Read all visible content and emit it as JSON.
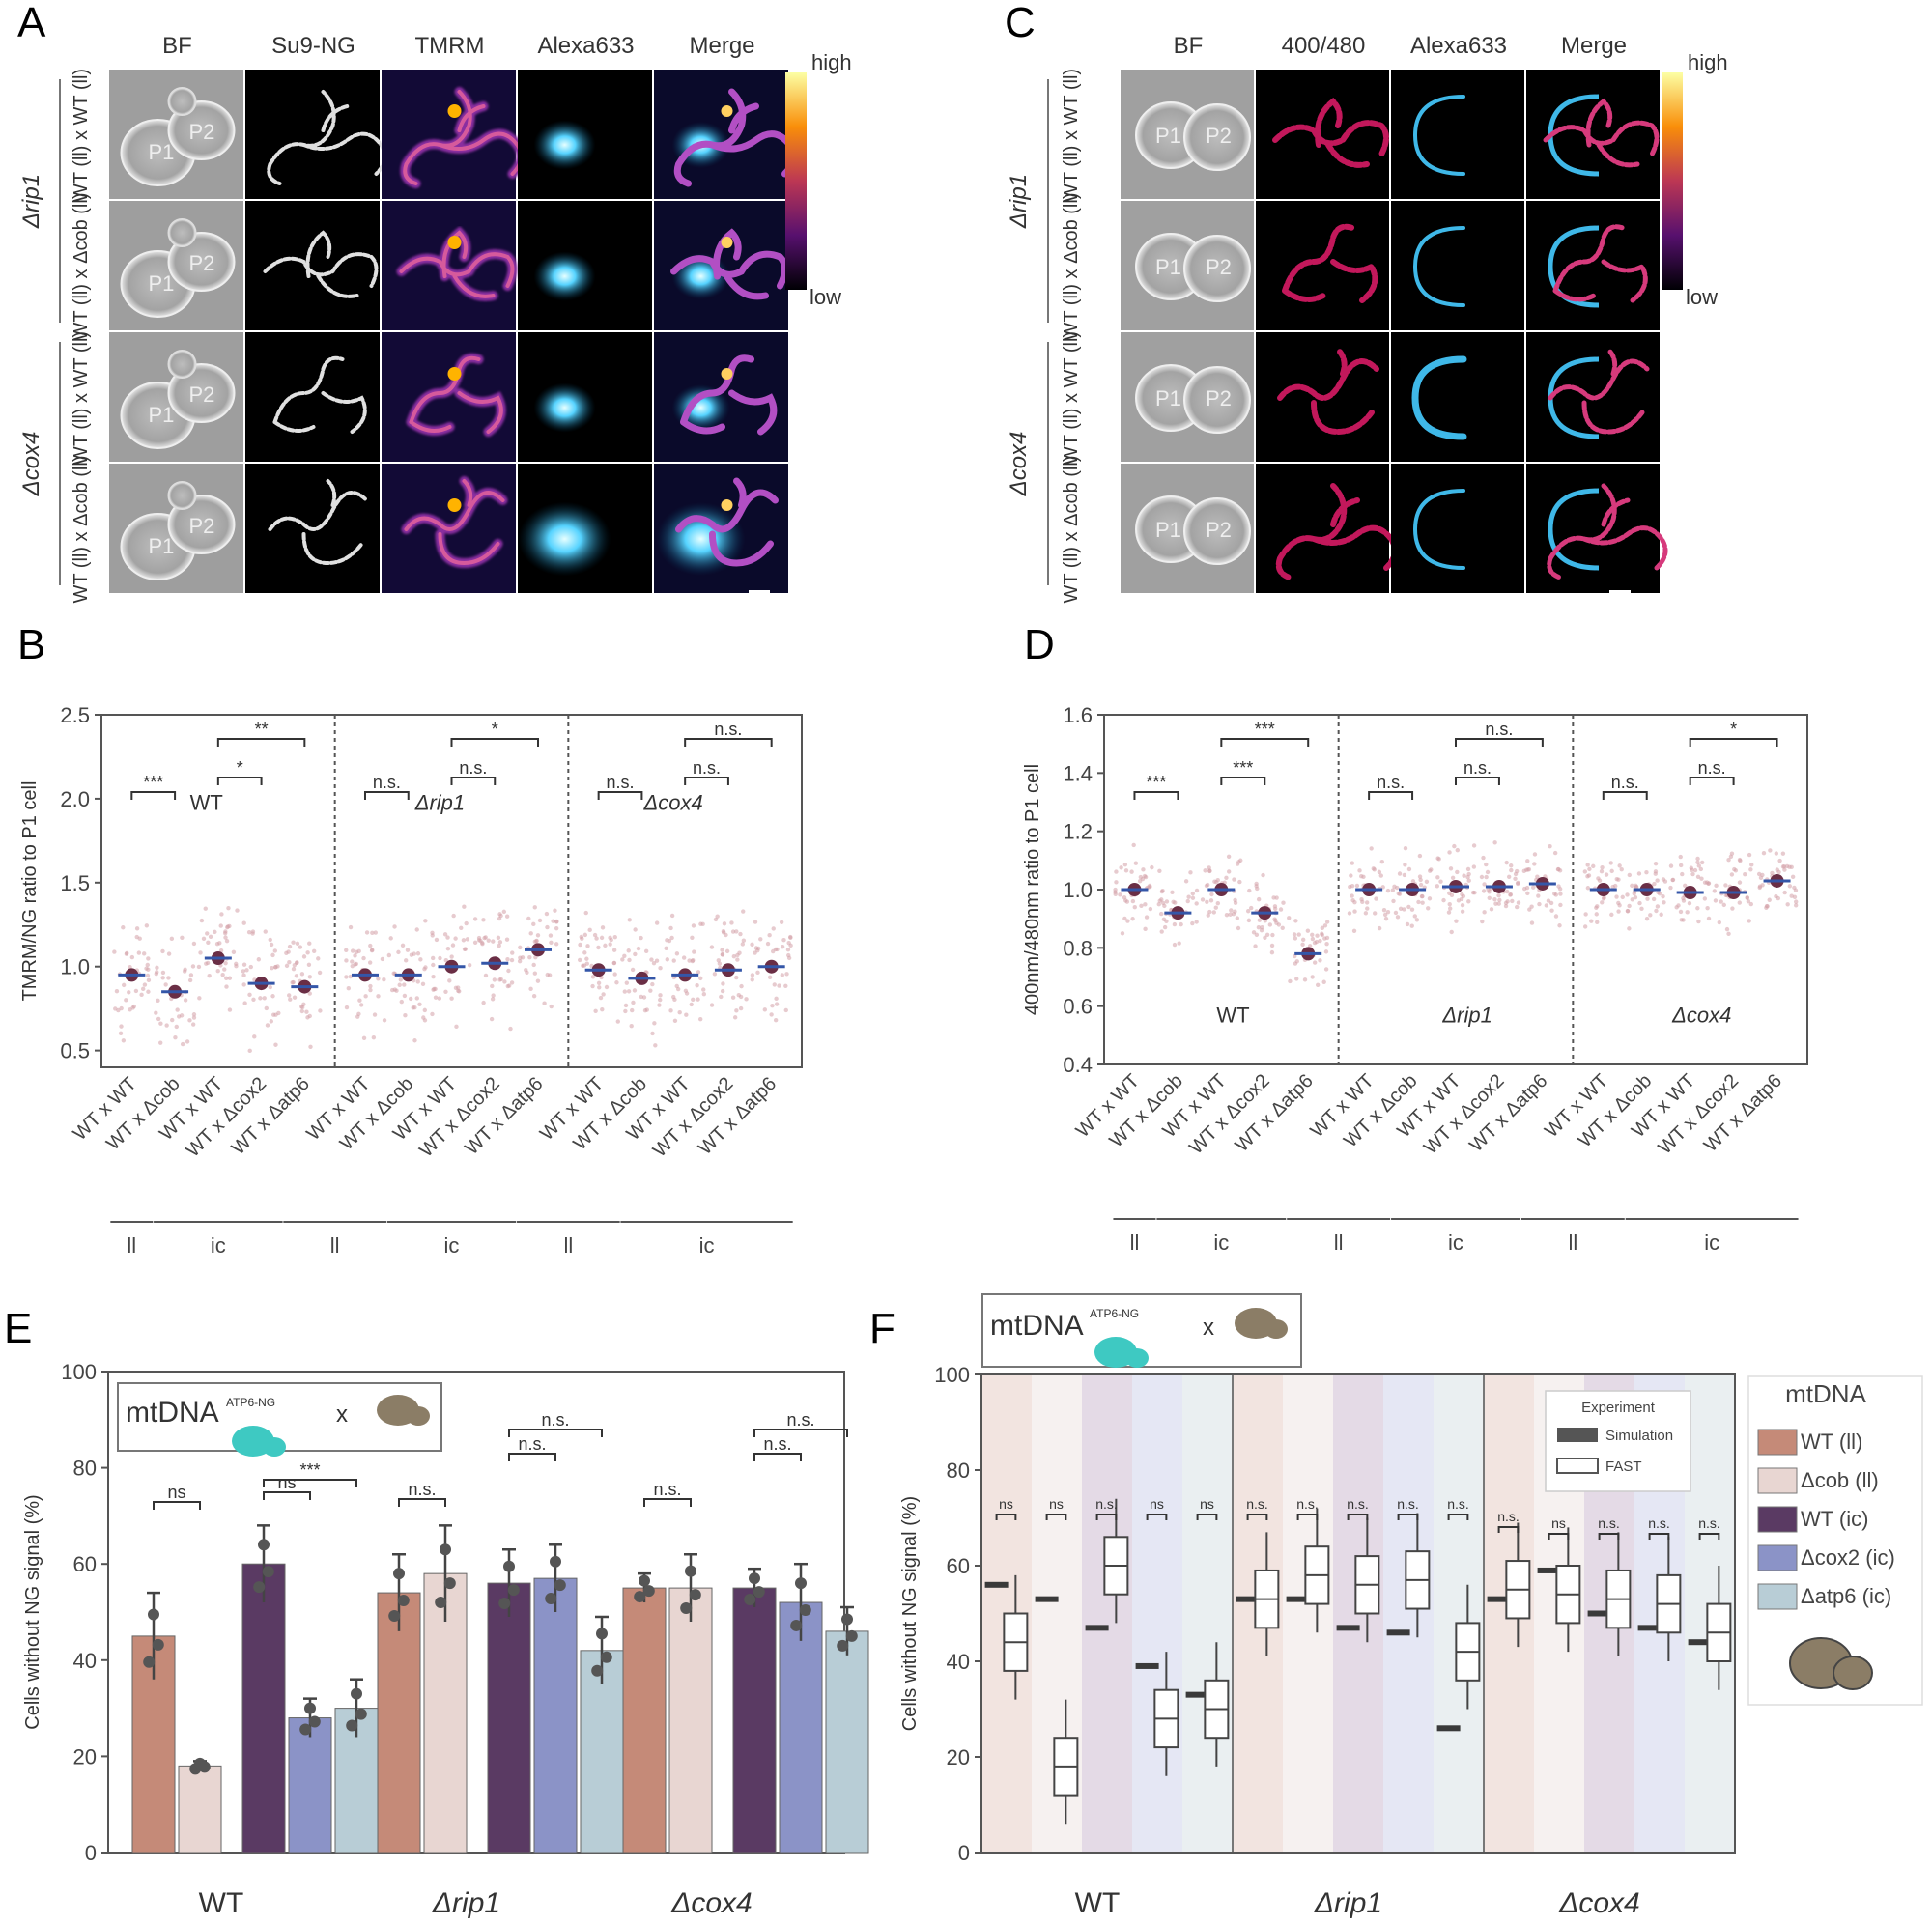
{
  "panel_letters": [
    "A",
    "B",
    "C",
    "D",
    "E",
    "F"
  ],
  "panel_A": {
    "columns": [
      "BF",
      "Su9-NG",
      "TMRM",
      "Alexa633",
      "Merge"
    ],
    "groups": [
      "Δrip1",
      "Δcox4"
    ],
    "row_labels": [
      "WT (ll) x WT (ll)",
      "WT (ll) x Δcob (ll)",
      "WT (ll) x WT (ll)",
      "WT (ll) x Δcob (ll)"
    ],
    "cell_labels": [
      [
        "P1",
        "P2"
      ],
      [
        "P1",
        "P2"
      ],
      [
        "P1",
        "P2"
      ],
      [
        "P1",
        "P2"
      ]
    ],
    "colorbar": {
      "high": "high",
      "low": "low"
    }
  },
  "panel_C": {
    "columns": [
      "BF",
      "400/480",
      "Alexa633",
      "Merge"
    ],
    "groups": [
      "Δrip1",
      "Δcox4"
    ],
    "row_labels": [
      "WT (ll) x WT (ll)",
      "WT (ll) x Δcob (ll)",
      "WT (ll) x WT (ll)",
      "WT (ll) x Δcob (ll)"
    ],
    "colorbar": {
      "high": "high",
      "low": "low"
    }
  },
  "chart_data": [
    {
      "id": "B",
      "type": "scatter",
      "ylabel": "TMRM/NG ratio to P1 cell",
      "ylim": [
        0.4,
        2.5
      ],
      "yticks": [
        "0.5",
        "1.0",
        "1.5",
        "2.0",
        "2.5"
      ],
      "groups": [
        "WT",
        "Δrip1",
        "Δcox4"
      ],
      "categories": [
        "WT x WT",
        "WT x Δcob",
        "WT x WT",
        "WT x Δcox2",
        "WT x Δatp6"
      ],
      "membership": [
        "ll",
        "ic",
        "ll",
        "ic",
        "ll",
        "ic"
      ],
      "medians": [
        [
          0.95,
          0.85,
          1.05,
          0.9,
          0.88
        ],
        [
          0.95,
          0.95,
          1.0,
          1.02,
          1.1
        ],
        [
          0.98,
          0.93,
          0.95,
          0.98,
          1.0
        ]
      ],
      "significance": [
        [
          [
            "***",
            0,
            1
          ],
          [
            "*",
            2,
            3
          ],
          [
            "**",
            2,
            4
          ]
        ],
        [
          [
            "n.s.",
            0,
            1
          ],
          [
            "n.s.",
            2,
            3
          ],
          [
            "*",
            2,
            4
          ]
        ],
        [
          [
            "n.s.",
            0,
            1
          ],
          [
            "n.s.",
            2,
            3
          ],
          [
            "n.s.",
            2,
            4
          ]
        ]
      ]
    },
    {
      "id": "D",
      "type": "scatter",
      "ylabel": "400nm/480nm ratio to P1 cell",
      "ylim": [
        0.4,
        1.6
      ],
      "yticks": [
        "0.4",
        "0.6",
        "0.8",
        "1.0",
        "1.2",
        "1.4",
        "1.6"
      ],
      "groups": [
        "WT",
        "Δrip1",
        "Δcox4"
      ],
      "categories": [
        "WT x WT",
        "WT x Δcob",
        "WT x WT",
        "WT x Δcox2",
        "WT x Δatp6"
      ],
      "membership": [
        "ll",
        "ic",
        "ll",
        "ic",
        "ll",
        "ic"
      ],
      "medians": [
        [
          1.0,
          0.92,
          1.0,
          0.92,
          0.78
        ],
        [
          1.0,
          1.0,
          1.01,
          1.01,
          1.02
        ],
        [
          1.0,
          1.0,
          0.99,
          0.99,
          1.03
        ]
      ],
      "significance": [
        [
          [
            "***",
            0,
            1
          ],
          [
            "***",
            2,
            3
          ],
          [
            "***",
            2,
            4
          ]
        ],
        [
          [
            "n.s.",
            0,
            1
          ],
          [
            "n.s.",
            2,
            3
          ],
          [
            "n.s.",
            2,
            4
          ]
        ],
        [
          [
            "n.s.",
            0,
            1
          ],
          [
            "n.s.",
            2,
            3
          ],
          [
            "*",
            2,
            4
          ]
        ]
      ]
    },
    {
      "id": "E",
      "type": "bar",
      "ylabel": "Cells without NG signal (%)",
      "ylim": [
        0,
        100
      ],
      "yticks": [
        "0",
        "20",
        "40",
        "60",
        "80",
        "100"
      ],
      "groups": [
        "WT",
        "Δrip1",
        "Δcox4"
      ],
      "series": [
        {
          "name": "WT (ll)",
          "color": "#c58a78"
        },
        {
          "name": "Δcob (ll)",
          "color": "#e8d6d2"
        },
        {
          "name": "WT (ic)",
          "color": "#5a3a63"
        },
        {
          "name": "Δcox2 (ic)",
          "color": "#8b93c7"
        },
        {
          "name": "Δatp6 (ic)",
          "color": "#b8cdd6"
        }
      ],
      "values": [
        [
          45,
          18,
          60,
          28,
          30
        ],
        [
          54,
          58,
          56,
          57,
          42
        ],
        [
          55,
          55,
          55,
          52,
          46
        ]
      ],
      "errors": [
        [
          9,
          1,
          8,
          4,
          6
        ],
        [
          8,
          10,
          7,
          7,
          7
        ],
        [
          3,
          7,
          4,
          8,
          5
        ]
      ],
      "inset": "mtDNA",
      "inset_sup": "ATP6-NG",
      "significance": [
        [
          [
            "ns",
            0,
            1
          ],
          [
            "ns",
            2,
            3
          ],
          [
            "***",
            2,
            4
          ]
        ],
        [
          [
            "n.s.",
            0,
            1
          ],
          [
            "n.s.",
            2,
            3
          ],
          [
            "n.s.",
            2,
            4
          ]
        ],
        [
          [
            "n.s.",
            0,
            1
          ],
          [
            "n.s.",
            2,
            3
          ],
          [
            "n.s.",
            2,
            4
          ]
        ]
      ]
    },
    {
      "id": "F",
      "type": "box",
      "ylabel": "Cells without NG signal (%)",
      "ylim": [
        0,
        100
      ],
      "yticks": [
        "0",
        "20",
        "40",
        "60",
        "80",
        "100"
      ],
      "groups": [
        "WT",
        "Δrip1",
        "Δcox4"
      ],
      "legend_experiment_title": "Experiment",
      "legend_experiment": [
        "Simulation",
        "FAST"
      ],
      "legend_mtdna_title": "mtDNA",
      "simulation": [
        [
          56,
          53,
          47,
          39,
          33
        ],
        [
          53,
          53,
          47,
          46,
          26
        ],
        [
          53,
          59,
          50,
          47,
          44
        ]
      ],
      "fast_medians": [
        [
          44,
          18,
          60,
          28,
          30
        ],
        [
          53,
          58,
          56,
          57,
          42
        ],
        [
          55,
          54,
          53,
          52,
          46
        ]
      ],
      "sig_labels": [
        [
          "ns",
          "ns",
          "n.s.",
          "ns",
          "ns"
        ],
        [
          "n.s.",
          "n.s.",
          "n.s.",
          "n.s.",
          "n.s."
        ],
        [
          "n.s.",
          "ns",
          "n.s.",
          "n.s.",
          "n.s."
        ]
      ],
      "inset": "mtDNA",
      "inset_sup": "ATP6-NG",
      "inset_x": "x"
    }
  ]
}
